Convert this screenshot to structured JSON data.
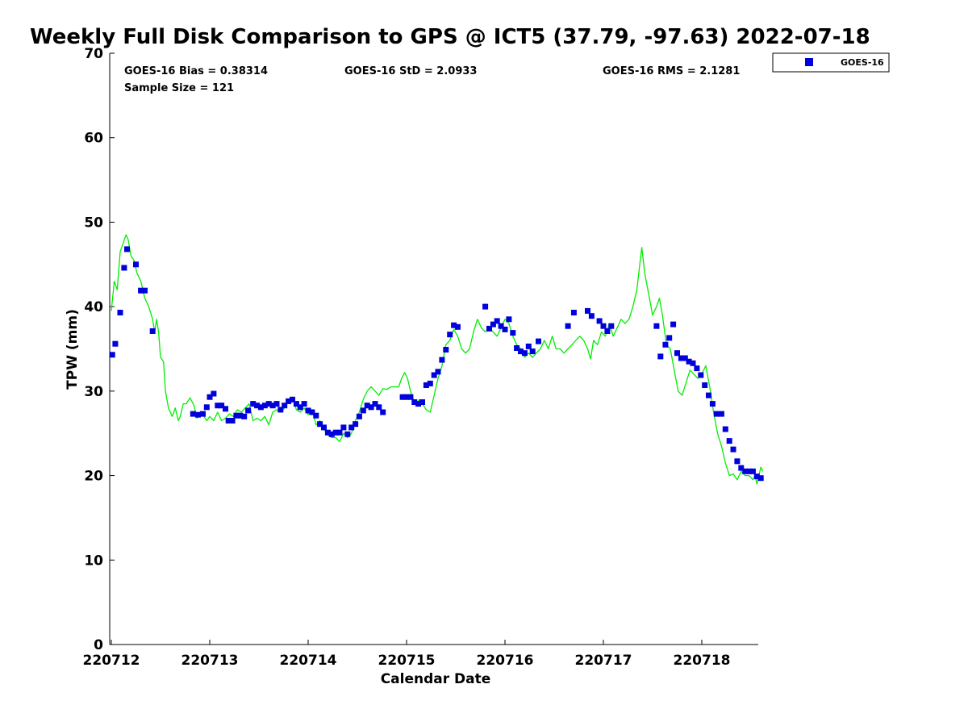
{
  "chart_data": {
    "type": "scatter",
    "title": "Weekly Full Disk Comparison to GPS @ ICT5 (37.79, -97.63) 2022-07-18",
    "xlabel": "Calendar Date",
    "ylabel": "TPW (mm)",
    "ylim": [
      0,
      70
    ],
    "xlim": [
      0,
      6.6
    ],
    "x_tick_values": [
      0,
      1,
      2,
      3,
      4,
      5,
      6
    ],
    "x_tick_labels": [
      "220712",
      "220713",
      "220714",
      "220715",
      "220716",
      "220717",
      "220718"
    ],
    "y_ticks": [
      0,
      10,
      20,
      30,
      40,
      50,
      60,
      70
    ],
    "grid": false,
    "legend_position": "top-right outside",
    "stats": {
      "bias": "GOES-16 Bias = 0.38314",
      "std": "GOES-16 StD = 2.0933",
      "rms": "GOES-16 RMS = 2.1281",
      "sample": "Sample Size = 121"
    },
    "series": [
      {
        "name": "GOES-16",
        "kind": "marker",
        "color": "#0000dd",
        "points": [
          [
            0.01,
            34.3
          ],
          [
            0.04,
            35.6
          ],
          [
            0.09,
            39.3
          ],
          [
            0.13,
            44.6
          ],
          [
            0.16,
            46.8
          ],
          [
            0.25,
            45.0
          ],
          [
            0.3,
            41.9
          ],
          [
            0.34,
            41.9
          ],
          [
            0.42,
            37.1
          ],
          [
            0.83,
            27.3
          ],
          [
            0.88,
            27.2
          ],
          [
            0.93,
            27.3
          ],
          [
            0.97,
            28.1
          ],
          [
            1.0,
            29.3
          ],
          [
            1.04,
            29.7
          ],
          [
            1.08,
            28.3
          ],
          [
            1.12,
            28.3
          ],
          [
            1.16,
            27.9
          ],
          [
            1.19,
            26.5
          ],
          [
            1.23,
            26.5
          ],
          [
            1.27,
            27.1
          ],
          [
            1.31,
            27.1
          ],
          [
            1.35,
            27.0
          ],
          [
            1.39,
            27.7
          ],
          [
            1.44,
            28.5
          ],
          [
            1.48,
            28.3
          ],
          [
            1.52,
            28.1
          ],
          [
            1.56,
            28.3
          ],
          [
            1.6,
            28.5
          ],
          [
            1.64,
            28.3
          ],
          [
            1.68,
            28.5
          ],
          [
            1.72,
            27.8
          ],
          [
            1.76,
            28.3
          ],
          [
            1.8,
            28.8
          ],
          [
            1.84,
            29.0
          ],
          [
            1.88,
            28.5
          ],
          [
            1.92,
            28.1
          ],
          [
            1.96,
            28.5
          ],
          [
            2.0,
            27.7
          ],
          [
            2.04,
            27.5
          ],
          [
            2.08,
            27.1
          ],
          [
            2.12,
            26.1
          ],
          [
            2.16,
            25.7
          ],
          [
            2.2,
            25.1
          ],
          [
            2.24,
            24.9
          ],
          [
            2.28,
            25.1
          ],
          [
            2.32,
            25.1
          ],
          [
            2.36,
            25.7
          ],
          [
            2.4,
            24.9
          ],
          [
            2.44,
            25.7
          ],
          [
            2.48,
            26.1
          ],
          [
            2.52,
            27.0
          ],
          [
            2.56,
            27.7
          ],
          [
            2.6,
            28.3
          ],
          [
            2.64,
            28.1
          ],
          [
            2.68,
            28.5
          ],
          [
            2.72,
            28.1
          ],
          [
            2.76,
            27.5
          ],
          [
            2.96,
            29.3
          ],
          [
            3.0,
            29.3
          ],
          [
            3.04,
            29.3
          ],
          [
            3.08,
            28.7
          ],
          [
            3.12,
            28.5
          ],
          [
            3.16,
            28.7
          ],
          [
            3.2,
            30.7
          ],
          [
            3.24,
            30.9
          ],
          [
            3.28,
            31.9
          ],
          [
            3.32,
            32.3
          ],
          [
            3.36,
            33.7
          ],
          [
            3.4,
            34.9
          ],
          [
            3.44,
            36.7
          ],
          [
            3.48,
            37.8
          ],
          [
            3.52,
            37.6
          ],
          [
            3.8,
            40.0
          ],
          [
            3.84,
            37.4
          ],
          [
            3.88,
            37.9
          ],
          [
            3.92,
            38.3
          ],
          [
            3.96,
            37.7
          ],
          [
            4.0,
            37.3
          ],
          [
            4.04,
            38.5
          ],
          [
            4.08,
            36.9
          ],
          [
            4.12,
            35.1
          ],
          [
            4.16,
            34.7
          ],
          [
            4.2,
            34.5
          ],
          [
            4.24,
            35.3
          ],
          [
            4.28,
            34.7
          ],
          [
            4.34,
            35.9
          ],
          [
            4.64,
            37.7
          ],
          [
            4.7,
            39.3
          ],
          [
            4.84,
            39.5
          ],
          [
            4.88,
            38.9
          ],
          [
            4.96,
            38.3
          ],
          [
            5.0,
            37.7
          ],
          [
            5.04,
            37.1
          ],
          [
            5.08,
            37.7
          ],
          [
            5.54,
            37.7
          ],
          [
            5.58,
            34.1
          ],
          [
            5.63,
            35.5
          ],
          [
            5.67,
            36.3
          ],
          [
            5.71,
            37.9
          ],
          [
            5.75,
            34.5
          ],
          [
            5.79,
            33.9
          ],
          [
            5.83,
            33.9
          ],
          [
            5.87,
            33.5
          ],
          [
            5.91,
            33.3
          ],
          [
            5.95,
            32.7
          ],
          [
            5.99,
            31.9
          ],
          [
            6.03,
            30.7
          ],
          [
            6.07,
            29.5
          ],
          [
            6.11,
            28.5
          ],
          [
            6.15,
            27.3
          ],
          [
            6.2,
            27.3
          ],
          [
            6.24,
            25.5
          ],
          [
            6.28,
            24.1
          ],
          [
            6.32,
            23.1
          ],
          [
            6.36,
            21.7
          ],
          [
            6.4,
            20.9
          ],
          [
            6.44,
            20.5
          ],
          [
            6.48,
            20.5
          ],
          [
            6.52,
            20.5
          ],
          [
            6.56,
            19.9
          ],
          [
            6.6,
            19.7
          ]
        ]
      },
      {
        "kind": "line",
        "color": "#00ee00",
        "points": [
          [
            0.0,
            39.5
          ],
          [
            0.03,
            43.0
          ],
          [
            0.06,
            42.0
          ],
          [
            0.09,
            46.5
          ],
          [
            0.12,
            47.5
          ],
          [
            0.15,
            48.5
          ],
          [
            0.17,
            48.0
          ],
          [
            0.2,
            46.0
          ],
          [
            0.23,
            45.5
          ],
          [
            0.26,
            44.0
          ],
          [
            0.3,
            43.0
          ],
          [
            0.34,
            41.0
          ],
          [
            0.38,
            40.0
          ],
          [
            0.42,
            38.5
          ],
          [
            0.44,
            37.0
          ],
          [
            0.46,
            38.5
          ],
          [
            0.48,
            37.0
          ],
          [
            0.5,
            34.0
          ],
          [
            0.53,
            33.5
          ],
          [
            0.55,
            30.0
          ],
          [
            0.58,
            28.0
          ],
          [
            0.62,
            27.0
          ],
          [
            0.65,
            28.0
          ],
          [
            0.68,
            26.5
          ],
          [
            0.7,
            27.0
          ],
          [
            0.73,
            28.5
          ],
          [
            0.76,
            28.5
          ],
          [
            0.8,
            29.2
          ],
          [
            0.84,
            28.3
          ],
          [
            0.87,
            26.8
          ],
          [
            0.9,
            27.5
          ],
          [
            0.93,
            27.2
          ],
          [
            0.97,
            26.5
          ],
          [
            1.0,
            27.0
          ],
          [
            1.04,
            26.5
          ],
          [
            1.08,
            27.5
          ],
          [
            1.12,
            26.5
          ],
          [
            1.16,
            26.8
          ],
          [
            1.2,
            27.3
          ],
          [
            1.24,
            27.0
          ],
          [
            1.28,
            27.8
          ],
          [
            1.32,
            27.5
          ],
          [
            1.36,
            28.0
          ],
          [
            1.4,
            28.5
          ],
          [
            1.44,
            26.5
          ],
          [
            1.48,
            26.8
          ],
          [
            1.52,
            26.5
          ],
          [
            1.56,
            27.0
          ],
          [
            1.6,
            26.0
          ],
          [
            1.64,
            27.5
          ],
          [
            1.68,
            27.8
          ],
          [
            1.72,
            27.5
          ],
          [
            1.76,
            28.0
          ],
          [
            1.8,
            28.8
          ],
          [
            1.84,
            29.3
          ],
          [
            1.88,
            27.8
          ],
          [
            1.92,
            27.5
          ],
          [
            1.96,
            28.0
          ],
          [
            2.0,
            27.2
          ],
          [
            2.04,
            27.8
          ],
          [
            2.08,
            26.0
          ],
          [
            2.12,
            26.5
          ],
          [
            2.16,
            25.5
          ],
          [
            2.2,
            24.8
          ],
          [
            2.24,
            24.5
          ],
          [
            2.28,
            24.5
          ],
          [
            2.32,
            24.0
          ],
          [
            2.36,
            25.0
          ],
          [
            2.4,
            24.5
          ],
          [
            2.44,
            25.0
          ],
          [
            2.48,
            26.5
          ],
          [
            2.52,
            27.5
          ],
          [
            2.56,
            29.0
          ],
          [
            2.6,
            30.0
          ],
          [
            2.64,
            30.5
          ],
          [
            2.68,
            30.0
          ],
          [
            2.72,
            29.5
          ],
          [
            2.76,
            30.3
          ],
          [
            2.8,
            30.2
          ],
          [
            2.84,
            30.5
          ],
          [
            2.88,
            30.5
          ],
          [
            2.92,
            30.5
          ],
          [
            2.95,
            31.5
          ],
          [
            2.98,
            32.2
          ],
          [
            3.01,
            31.5
          ],
          [
            3.04,
            30.0
          ],
          [
            3.07,
            29.0
          ],
          [
            3.1,
            28.5
          ],
          [
            3.13,
            29.0
          ],
          [
            3.16,
            28.5
          ],
          [
            3.2,
            27.8
          ],
          [
            3.24,
            27.5
          ],
          [
            3.28,
            29.5
          ],
          [
            3.32,
            31.5
          ],
          [
            3.36,
            33.0
          ],
          [
            3.4,
            35.5
          ],
          [
            3.44,
            36.0
          ],
          [
            3.48,
            37.3
          ],
          [
            3.52,
            36.5
          ],
          [
            3.56,
            35.0
          ],
          [
            3.6,
            34.5
          ],
          [
            3.64,
            35.0
          ],
          [
            3.68,
            37.0
          ],
          [
            3.72,
            38.5
          ],
          [
            3.76,
            37.5
          ],
          [
            3.8,
            37.0
          ],
          [
            3.84,
            37.5
          ],
          [
            3.88,
            37.0
          ],
          [
            3.92,
            36.5
          ],
          [
            3.96,
            37.5
          ],
          [
            4.0,
            38.5
          ],
          [
            4.04,
            38.0
          ],
          [
            4.08,
            36.5
          ],
          [
            4.12,
            35.5
          ],
          [
            4.16,
            35.0
          ],
          [
            4.2,
            34.0
          ],
          [
            4.24,
            34.5
          ],
          [
            4.28,
            34.0
          ],
          [
            4.32,
            34.5
          ],
          [
            4.36,
            35.0
          ],
          [
            4.4,
            36.0
          ],
          [
            4.44,
            35.0
          ],
          [
            4.48,
            36.5
          ],
          [
            4.52,
            35.0
          ],
          [
            4.56,
            35.0
          ],
          [
            4.6,
            34.5
          ],
          [
            4.64,
            35.0
          ],
          [
            4.68,
            35.5
          ],
          [
            4.72,
            36.0
          ],
          [
            4.76,
            36.5
          ],
          [
            4.8,
            36.0
          ],
          [
            4.84,
            35.0
          ],
          [
            4.87,
            33.8
          ],
          [
            4.9,
            36.0
          ],
          [
            4.94,
            35.5
          ],
          [
            4.98,
            37.0
          ],
          [
            5.02,
            36.5
          ],
          [
            5.06,
            38.0
          ],
          [
            5.1,
            36.5
          ],
          [
            5.14,
            37.5
          ],
          [
            5.18,
            38.5
          ],
          [
            5.22,
            38.0
          ],
          [
            5.26,
            38.5
          ],
          [
            5.3,
            40.0
          ],
          [
            5.34,
            42.0
          ],
          [
            5.37,
            45.0
          ],
          [
            5.39,
            47.0
          ],
          [
            5.42,
            44.0
          ],
          [
            5.46,
            41.5
          ],
          [
            5.5,
            39.0
          ],
          [
            5.54,
            40.0
          ],
          [
            5.57,
            41.0
          ],
          [
            5.6,
            39.0
          ],
          [
            5.64,
            35.5
          ],
          [
            5.68,
            35.0
          ],
          [
            5.72,
            32.5
          ],
          [
            5.76,
            30.0
          ],
          [
            5.8,
            29.5
          ],
          [
            5.84,
            31.0
          ],
          [
            5.88,
            32.5
          ],
          [
            5.92,
            32.0
          ],
          [
            5.96,
            31.5
          ],
          [
            6.0,
            32.0
          ],
          [
            6.04,
            33.0
          ],
          [
            6.08,
            30.5
          ],
          [
            6.12,
            27.5
          ],
          [
            6.16,
            25.0
          ],
          [
            6.2,
            23.5
          ],
          [
            6.24,
            21.5
          ],
          [
            6.28,
            20.0
          ],
          [
            6.32,
            20.2
          ],
          [
            6.36,
            19.5
          ],
          [
            6.4,
            20.5
          ],
          [
            6.44,
            20.0
          ],
          [
            6.48,
            20.0
          ],
          [
            6.52,
            19.5
          ],
          [
            6.54,
            20.0
          ],
          [
            6.56,
            19.0
          ],
          [
            6.6,
            21.0
          ],
          [
            6.62,
            20.5
          ]
        ]
      }
    ]
  }
}
